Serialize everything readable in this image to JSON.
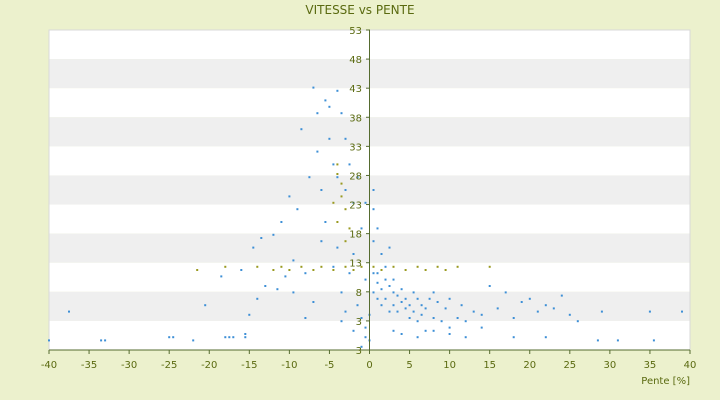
{
  "chart_data": {
    "type": "scatter",
    "title": "VITESSE vs PENTE",
    "xlabel": "Pente [%]",
    "ylabel": "",
    "xlim": [
      -40,
      40
    ],
    "ylim": [
      3,
      53
    ],
    "xticks": [
      "-40",
      "-35",
      "-30",
      "-25",
      "-20",
      "-15",
      "-10",
      "-5",
      "0",
      "5",
      "10",
      "15",
      "20",
      "25",
      "30",
      "35",
      "40"
    ],
    "yticks": [
      "3",
      "3",
      "8",
      "13",
      "18",
      "23",
      "28",
      "33",
      "38",
      "43",
      "48",
      "53"
    ],
    "grid": "horizontal alternating bands",
    "colors": {
      "primary": "#3d8fd6",
      "secondary": "#9a9a20",
      "band": "#efefef",
      "axis": "#556b2f"
    },
    "series": [
      {
        "color": "#3d8fd6",
        "points": [
          [
            -40,
            4.5
          ],
          [
            -37.5,
            9
          ],
          [
            -33.5,
            4.5
          ],
          [
            -33,
            4.5
          ],
          [
            -25,
            5
          ],
          [
            -24.5,
            5
          ],
          [
            -22,
            4.5
          ],
          [
            -20.5,
            10
          ],
          [
            -18.5,
            14.5
          ],
          [
            -18,
            5
          ],
          [
            -17.5,
            5
          ],
          [
            -17,
            5
          ],
          [
            -16,
            15.5
          ],
          [
            -15.5,
            5
          ],
          [
            -15.5,
            5.5
          ],
          [
            -15,
            8.5
          ],
          [
            -14.5,
            19
          ],
          [
            -14,
            11
          ],
          [
            -13.5,
            20.5
          ],
          [
            -13,
            13
          ],
          [
            -12,
            21
          ],
          [
            -11.5,
            12.5
          ],
          [
            -11,
            23
          ],
          [
            -10.5,
            14.5
          ],
          [
            -10,
            27
          ],
          [
            -9.5,
            17
          ],
          [
            -9,
            25
          ],
          [
            -8.5,
            37.5
          ],
          [
            -8,
            15
          ],
          [
            -7.5,
            30
          ],
          [
            -7,
            44
          ],
          [
            -6.5,
            40
          ],
          [
            -6.5,
            34
          ],
          [
            -6,
            28
          ],
          [
            -5.5,
            42
          ],
          [
            -5,
            41
          ],
          [
            -5,
            36
          ],
          [
            -4.5,
            32
          ],
          [
            -4,
            43.5
          ],
          [
            -4,
            30
          ],
          [
            -3.5,
            40
          ],
          [
            -3,
            36
          ],
          [
            -3,
            28
          ],
          [
            -2.5,
            32
          ],
          [
            -2,
            26
          ],
          [
            -1.5,
            30
          ],
          [
            -1,
            22
          ],
          [
            -0.5,
            26
          ],
          [
            -1.5,
            10
          ],
          [
            -1,
            8
          ],
          [
            -0.5,
            6.5
          ],
          [
            -0.5,
            5
          ],
          [
            -0.5,
            14
          ],
          [
            -3.5,
            12
          ],
          [
            -3,
            9
          ],
          [
            -2.5,
            15
          ],
          [
            -4.5,
            16
          ],
          [
            -6,
            20
          ],
          [
            -5.5,
            23
          ],
          [
            -4,
            19
          ],
          [
            -2,
            18
          ],
          [
            -3.5,
            7.5
          ],
          [
            -2,
            6
          ],
          [
            -7,
            10.5
          ],
          [
            -8,
            8
          ],
          [
            -9.5,
            12
          ],
          [
            -1,
            3.5
          ],
          [
            0,
            4.5
          ],
          [
            0,
            8.5
          ],
          [
            0.5,
            12
          ],
          [
            0.5,
            15
          ],
          [
            1,
            13.5
          ],
          [
            1,
            11
          ],
          [
            1.5,
            12.5
          ],
          [
            1.5,
            10
          ],
          [
            2,
            14
          ],
          [
            2,
            11
          ],
          [
            2.5,
            9
          ],
          [
            2.5,
            13
          ],
          [
            3,
            12
          ],
          [
            3,
            10
          ],
          [
            3.5,
            11.5
          ],
          [
            3.5,
            9
          ],
          [
            4,
            10.5
          ],
          [
            4,
            12.5
          ],
          [
            4.5,
            9.5
          ],
          [
            4.5,
            11
          ],
          [
            5,
            10
          ],
          [
            5,
            8
          ],
          [
            5.5,
            12
          ],
          [
            5.5,
            9
          ],
          [
            6,
            11
          ],
          [
            6,
            7.5
          ],
          [
            6.5,
            10
          ],
          [
            6.5,
            8.5
          ],
          [
            7,
            9.5
          ],
          [
            7,
            6
          ],
          [
            7.5,
            11
          ],
          [
            8,
            8
          ],
          [
            8,
            12
          ],
          [
            8.5,
            10.5
          ],
          [
            9,
            7.5
          ],
          [
            9.5,
            9.5
          ],
          [
            10,
            11
          ],
          [
            10,
            6.5
          ],
          [
            11,
            8
          ],
          [
            11.5,
            10
          ],
          [
            12,
            7.5
          ],
          [
            13,
            9
          ],
          [
            14,
            8.5
          ],
          [
            15,
            13
          ],
          [
            16,
            9.5
          ],
          [
            17,
            12
          ],
          [
            18,
            8
          ],
          [
            19,
            10.5
          ],
          [
            20,
            11
          ],
          [
            21,
            9
          ],
          [
            22,
            10
          ],
          [
            23,
            9.5
          ],
          [
            24,
            11.5
          ],
          [
            25,
            8.5
          ],
          [
            26,
            7.5
          ],
          [
            28.5,
            4.5
          ],
          [
            29,
            9
          ],
          [
            31,
            4.5
          ],
          [
            35,
            9
          ],
          [
            35.5,
            4.5
          ],
          [
            39,
            9
          ],
          [
            3,
            6
          ],
          [
            4,
            5.5
          ],
          [
            6,
            5
          ],
          [
            8,
            6
          ],
          [
            10,
            5.5
          ],
          [
            12,
            5
          ],
          [
            14,
            6.5
          ],
          [
            18,
            5
          ],
          [
            22,
            5
          ],
          [
            1,
            15
          ],
          [
            2,
            16
          ],
          [
            3,
            14
          ],
          [
            1.5,
            18
          ],
          [
            2.5,
            19
          ],
          [
            1,
            22
          ],
          [
            0.5,
            20
          ],
          [
            0.5,
            25
          ],
          [
            0.5,
            28
          ]
        ]
      },
      {
        "color": "#9a9a20",
        "points": [
          [
            -21.5,
            15.5
          ],
          [
            -18,
            16
          ],
          [
            -14,
            16
          ],
          [
            -12,
            15.5
          ],
          [
            -11,
            16
          ],
          [
            -10,
            15.5
          ],
          [
            -8.5,
            16
          ],
          [
            -7,
            15.5
          ],
          [
            -6,
            16
          ],
          [
            -4.5,
            15.5
          ],
          [
            -3,
            16
          ],
          [
            -2,
            15.5
          ],
          [
            -1,
            16
          ],
          [
            0.5,
            16
          ],
          [
            1.5,
            15.5
          ],
          [
            3,
            16
          ],
          [
            4.5,
            15.5
          ],
          [
            6,
            16
          ],
          [
            7,
            15.5
          ],
          [
            8.5,
            16
          ],
          [
            9.5,
            15.5
          ],
          [
            11,
            16
          ],
          [
            15,
            16
          ],
          [
            -4,
            23
          ],
          [
            -3.5,
            27
          ],
          [
            -3,
            25
          ],
          [
            -4,
            32
          ],
          [
            -3.5,
            29
          ],
          [
            -3,
            20
          ],
          [
            -2.5,
            22
          ],
          [
            -4.5,
            26
          ],
          [
            -4,
            30.5
          ]
        ]
      }
    ]
  }
}
